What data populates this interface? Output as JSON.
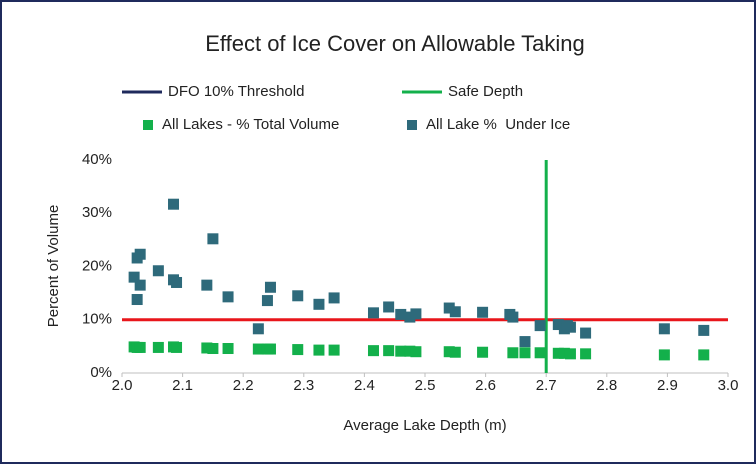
{
  "chart_data": {
    "type": "scatter",
    "title": "Effect of Ice Cover on Allowable Taking",
    "x_label": "Average Lake Depth (m)",
    "y_label": "Percent of Volume",
    "xlim": [
      2,
      3
    ],
    "ylim": [
      0,
      40
    ],
    "xticks": [
      {
        "value": 2,
        "label": "2.0"
      },
      {
        "value": 2.1,
        "label": "2.1"
      },
      {
        "value": 2.2,
        "label": "2.2"
      },
      {
        "value": 2.3,
        "label": "2.3"
      },
      {
        "value": 2.4,
        "label": "2.4"
      },
      {
        "value": 2.5,
        "label": "2.5"
      },
      {
        "value": 2.6,
        "label": "2.6"
      },
      {
        "value": 2.7,
        "label": "2.7"
      },
      {
        "value": 2.8,
        "label": "2.8"
      },
      {
        "value": 2.9,
        "label": "2.9"
      },
      {
        "value": 3,
        "label": "3.0"
      }
    ],
    "yticks": [
      {
        "value": 0,
        "label": "0%"
      },
      {
        "value": 10,
        "label": "10%"
      },
      {
        "value": 20,
        "label": "20%"
      },
      {
        "value": 30,
        "label": "30%"
      },
      {
        "value": 40,
        "label": "40%"
      }
    ],
    "grid": false,
    "hlines": [
      {
        "name": "DFO 10% Threshold",
        "color": "#1f2a5c",
        "line_color": "#e8161b",
        "value": 10
      }
    ],
    "vlines": [
      {
        "name": "Safe Depth",
        "color": "#13b04b",
        "value": 2.7
      }
    ],
    "series": [
      {
        "name": "All Lakes - % Total Volume",
        "color": "#13b04b",
        "x": [
          2.02,
          2.025,
          2.03,
          2.06,
          2.085,
          2.09,
          2.14,
          2.15,
          2.175,
          2.225,
          2.24,
          2.245,
          2.29,
          2.325,
          2.35,
          2.415,
          2.44,
          2.46,
          2.475,
          2.485,
          2.54,
          2.55,
          2.595,
          2.645,
          2.665,
          2.69,
          2.72,
          2.73,
          2.74,
          2.765,
          2.895,
          2.96
        ],
        "values": [
          4.9,
          4.8,
          4.8,
          4.8,
          4.9,
          4.8,
          4.7,
          4.6,
          4.6,
          4.5,
          4.5,
          4.5,
          4.4,
          4.3,
          4.3,
          4.2,
          4.2,
          4.1,
          4.1,
          4.0,
          4.0,
          3.9,
          3.9,
          3.8,
          3.8,
          3.8,
          3.7,
          3.7,
          3.6,
          3.6,
          3.4,
          3.4
        ]
      },
      {
        "name": "All Lake %  Under Ice",
        "color": "#2e6a7b",
        "x": [
          2.02,
          2.025,
          2.03,
          2.025,
          2.03,
          2.06,
          2.085,
          2.085,
          2.09,
          2.14,
          2.15,
          2.175,
          2.225,
          2.24,
          2.245,
          2.29,
          2.325,
          2.35,
          2.415,
          2.44,
          2.46,
          2.475,
          2.485,
          2.54,
          2.55,
          2.595,
          2.64,
          2.645,
          2.665,
          2.69,
          2.72,
          2.73,
          2.735,
          2.74,
          2.765,
          2.895,
          2.96
        ],
        "values": [
          18.0,
          21.6,
          22.3,
          13.8,
          16.5,
          19.2,
          31.7,
          17.5,
          17.0,
          16.5,
          25.2,
          14.3,
          8.3,
          13.6,
          16.1,
          14.5,
          12.9,
          14.1,
          11.3,
          12.4,
          11.0,
          10.5,
          11.1,
          12.2,
          11.5,
          11.4,
          11.0,
          10.5,
          5.9,
          8.9,
          9.1,
          8.3,
          8.9,
          8.6,
          7.5,
          8.3,
          8.0
        ]
      }
    ]
  }
}
